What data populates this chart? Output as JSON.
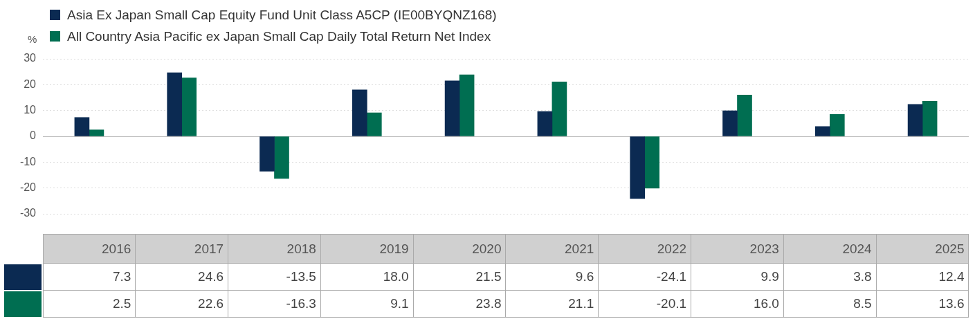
{
  "chart_data": {
    "type": "bar",
    "ylabel": "%",
    "categories": [
      "2016",
      "2017",
      "2018",
      "2019",
      "2020",
      "2021",
      "2022",
      "2023",
      "2024",
      "2025"
    ],
    "series": [
      {
        "name": "Asia Ex Japan Small Cap Equity Fund Unit Class A5CP (IE00BYQNZ168)",
        "color": "#0b2a52",
        "values": [
          7.3,
          24.6,
          -13.5,
          18.0,
          21.5,
          9.6,
          -24.1,
          9.9,
          3.8,
          12.4
        ],
        "value_labels": [
          "7.3",
          "24.6",
          "-13.5",
          "18.0",
          "21.5",
          "9.6",
          "-24.1",
          "9.9",
          "3.8",
          "12.4"
        ]
      },
      {
        "name": "All Country Asia Pacific ex Japan Small Cap Daily Total Return Net Index",
        "color": "#006e51",
        "values": [
          2.5,
          22.6,
          -16.3,
          9.1,
          23.8,
          21.1,
          -20.1,
          16.0,
          8.5,
          13.6
        ],
        "value_labels": [
          "2.5",
          "22.6",
          "-16.3",
          "9.1",
          "23.8",
          "21.1",
          "-20.1",
          "16.0",
          "8.5",
          "13.6"
        ]
      }
    ],
    "ylim": [
      -30,
      30
    ],
    "yticks": [
      -30,
      -20,
      -10,
      0,
      10,
      20,
      30
    ],
    "grid": "y",
    "legend": "top left"
  }
}
